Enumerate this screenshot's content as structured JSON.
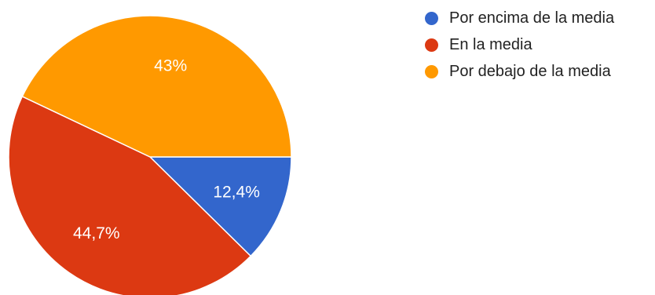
{
  "chart_data": {
    "type": "pie",
    "title": "",
    "start_angle_deg": 90,
    "direction": "clockwise",
    "legend_position": "top-right",
    "slices": [
      {
        "name": "Por encima de la media",
        "value": 12.4,
        "label": "12,4%",
        "color": "#3366cc"
      },
      {
        "name": "En la media",
        "value": 44.7,
        "label": "44,7%",
        "color": "#dc3912"
      },
      {
        "name": "Por debajo de la media",
        "value": 43.0,
        "label": "43%",
        "color": "#ff9900"
      }
    ]
  }
}
